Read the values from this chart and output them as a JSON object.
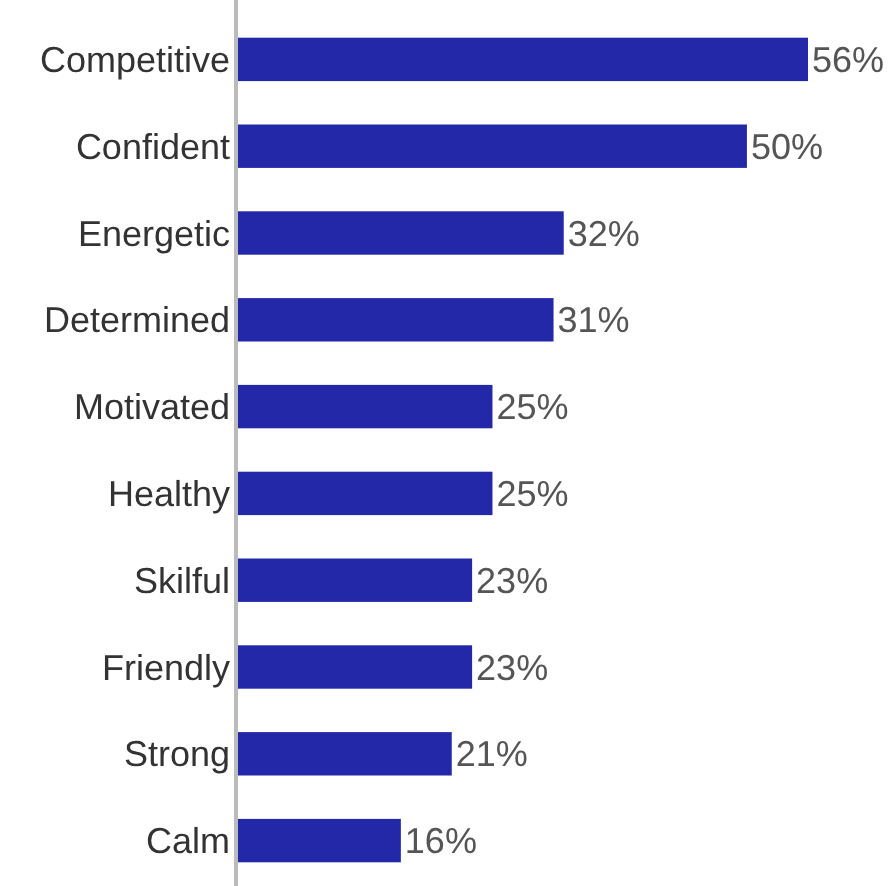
{
  "chart_data": {
    "type": "bar",
    "orientation": "horizontal",
    "categories": [
      "Competitive",
      "Confident",
      "Energetic",
      "Determined",
      "Motivated",
      "Healthy",
      "Skilful",
      "Friendly",
      "Strong",
      "Calm"
    ],
    "values": [
      56,
      50,
      32,
      31,
      25,
      25,
      23,
      23,
      21,
      16
    ],
    "value_labels": [
      "56%",
      "50%",
      "32%",
      "31%",
      "25%",
      "25%",
      "23%",
      "23%",
      "21%",
      "16%"
    ],
    "color": "#2228a8"
  }
}
